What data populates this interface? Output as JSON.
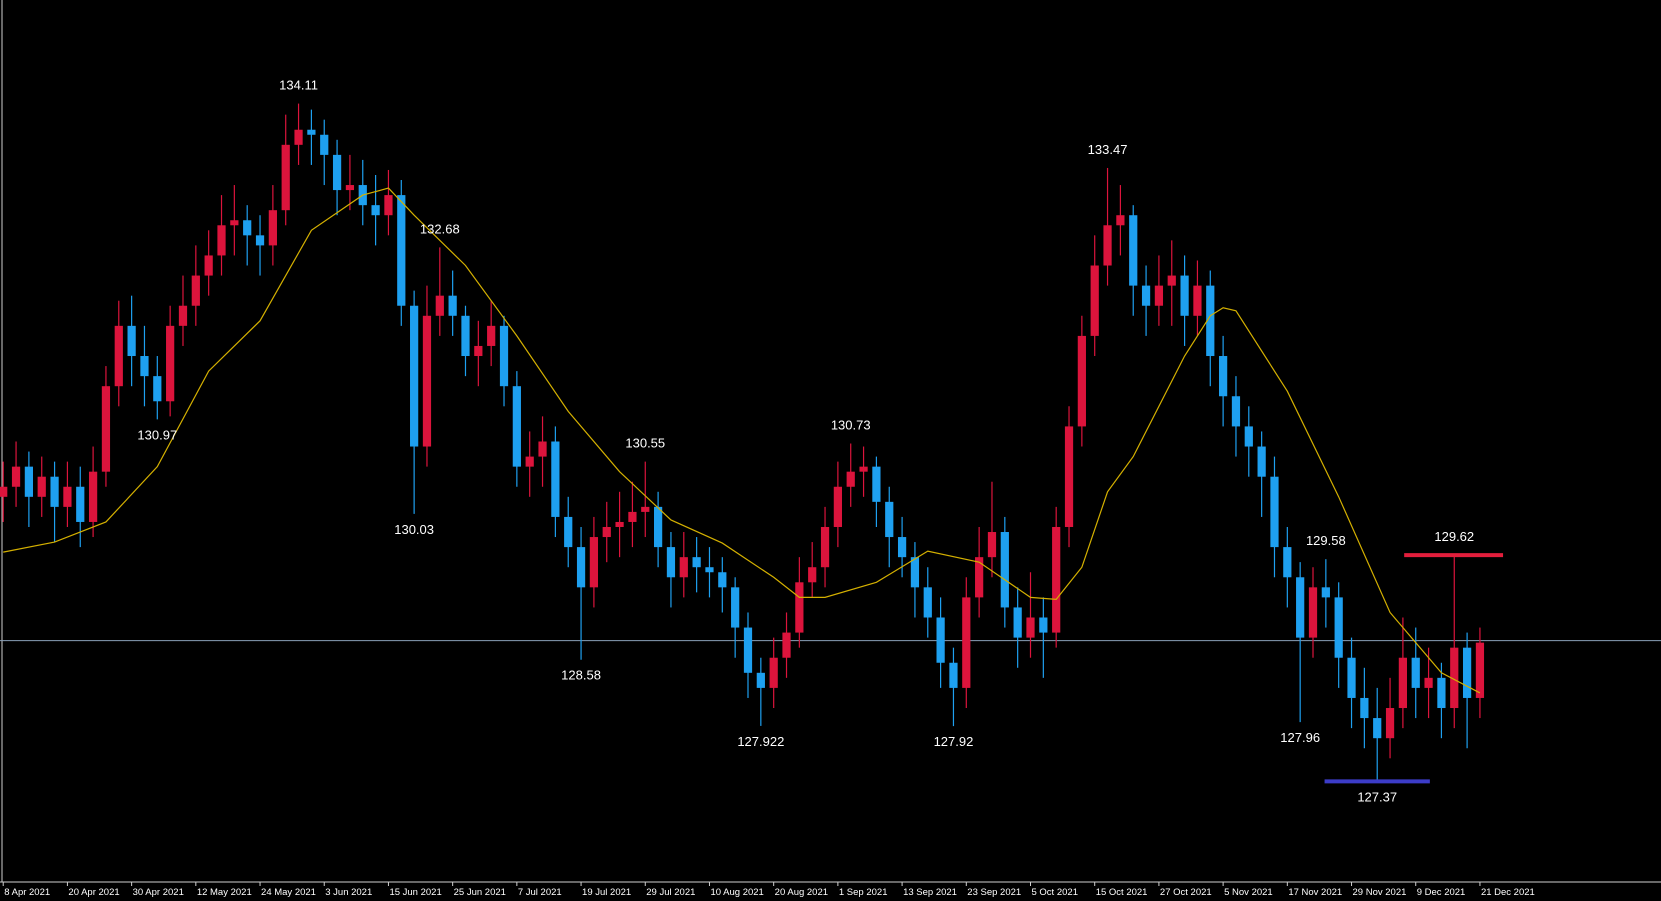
{
  "chart_data": {
    "type": "candlestick",
    "up_color": "#dc143c",
    "down_color": "#1ea0f0",
    "ma_color": "#d4b000",
    "price_line_color": "#8aa0b8",
    "xlim": [
      -0.25,
      129.1
    ],
    "ylim": [
      126.37,
      135.14
    ],
    "xticks": [
      {
        "value": 0,
        "label": "8 Apr 2021"
      },
      {
        "value": 5,
        "label": "20 Apr 2021"
      },
      {
        "value": 10,
        "label": "30 Apr 2021"
      },
      {
        "value": 15,
        "label": "12 May 2021"
      },
      {
        "value": 20,
        "label": "24 May 2021"
      },
      {
        "value": 25,
        "label": "3 Jun 2021"
      },
      {
        "value": 30,
        "label": "15 Jun 2021"
      },
      {
        "value": 35,
        "label": "25 Jun 2021"
      },
      {
        "value": 40,
        "label": "7 Jul 2021"
      },
      {
        "value": 45,
        "label": "19 Jul 2021"
      },
      {
        "value": 50,
        "label": "29 Jul 2021"
      },
      {
        "value": 55,
        "label": "10 Aug 2021"
      },
      {
        "value": 60,
        "label": "20 Aug 2021"
      },
      {
        "value": 65,
        "label": "1 Sep 2021"
      },
      {
        "value": 70,
        "label": "13 Sep 2021"
      },
      {
        "value": 75,
        "label": "23 Sep 2021"
      },
      {
        "value": 80,
        "label": "5 Oct 2021"
      },
      {
        "value": 85,
        "label": "15 Oct 2021"
      },
      {
        "value": 90,
        "label": "27 Oct 2021"
      },
      {
        "value": 95,
        "label": "5 Nov 2021"
      },
      {
        "value": 100,
        "label": "17 Nov 2021"
      },
      {
        "value": 105,
        "label": "29 Nov 2021"
      },
      {
        "value": 110,
        "label": "9 Dec 2021"
      },
      {
        "value": 115,
        "label": "21 Dec 2021"
      }
    ],
    "ohlc": [
      [
        130.2,
        130.55,
        129.95,
        130.3
      ],
      [
        130.3,
        130.75,
        130.1,
        130.5
      ],
      [
        130.5,
        130.65,
        129.9,
        130.2
      ],
      [
        130.2,
        130.6,
        130.0,
        130.4
      ],
      [
        130.4,
        130.55,
        129.75,
        130.1
      ],
      [
        130.1,
        130.55,
        129.9,
        130.3
      ],
      [
        130.3,
        130.5,
        129.7,
        129.95
      ],
      [
        129.95,
        130.7,
        129.8,
        130.45
      ],
      [
        130.45,
        131.5,
        130.3,
        131.3
      ],
      [
        131.3,
        132.15,
        131.1,
        131.9
      ],
      [
        131.9,
        132.2,
        131.3,
        131.6
      ],
      [
        131.6,
        131.9,
        131.1,
        131.4
      ],
      [
        131.4,
        131.6,
        130.97,
        131.15
      ],
      [
        131.15,
        132.1,
        131.0,
        131.9
      ],
      [
        131.9,
        132.4,
        131.7,
        132.1
      ],
      [
        132.1,
        132.7,
        131.9,
        132.4
      ],
      [
        132.4,
        132.85,
        132.2,
        132.6
      ],
      [
        132.6,
        133.2,
        132.4,
        132.9
      ],
      [
        132.9,
        133.3,
        132.6,
        132.95
      ],
      [
        132.95,
        133.1,
        132.5,
        132.8
      ],
      [
        132.8,
        133.0,
        132.4,
        132.7
      ],
      [
        132.7,
        133.3,
        132.5,
        133.05
      ],
      [
        133.05,
        134.0,
        132.9,
        133.7
      ],
      [
        133.7,
        134.11,
        133.5,
        133.85
      ],
      [
        133.85,
        134.05,
        133.5,
        133.8
      ],
      [
        133.8,
        133.95,
        133.3,
        133.6
      ],
      [
        133.6,
        133.75,
        133.0,
        133.25
      ],
      [
        133.25,
        133.6,
        133.05,
        133.3
      ],
      [
        133.3,
        133.55,
        132.9,
        133.1
      ],
      [
        133.1,
        133.4,
        132.7,
        133.0
      ],
      [
        133.0,
        133.45,
        132.8,
        133.2
      ],
      [
        133.2,
        133.35,
        131.9,
        132.1
      ],
      [
        132.1,
        132.25,
        130.03,
        130.7
      ],
      [
        130.7,
        132.3,
        130.5,
        132.0
      ],
      [
        132.0,
        132.68,
        131.8,
        132.2
      ],
      [
        132.2,
        132.45,
        131.8,
        132.0
      ],
      [
        132.0,
        132.1,
        131.4,
        131.6
      ],
      [
        131.6,
        131.95,
        131.3,
        131.7
      ],
      [
        131.7,
        132.15,
        131.5,
        131.9
      ],
      [
        131.9,
        132.0,
        131.1,
        131.3
      ],
      [
        131.3,
        131.45,
        130.3,
        130.5
      ],
      [
        130.5,
        130.85,
        130.2,
        130.6
      ],
      [
        130.6,
        131.0,
        130.3,
        130.75
      ],
      [
        130.75,
        130.9,
        129.8,
        130.0
      ],
      [
        130.0,
        130.2,
        129.5,
        129.7
      ],
      [
        129.7,
        129.9,
        128.58,
        129.3
      ],
      [
        129.3,
        130.0,
        129.1,
        129.8
      ],
      [
        129.8,
        130.15,
        129.55,
        129.9
      ],
      [
        129.9,
        130.25,
        129.6,
        129.95
      ],
      [
        129.95,
        130.35,
        129.7,
        130.05
      ],
      [
        130.05,
        130.55,
        129.8,
        130.1
      ],
      [
        130.1,
        130.25,
        129.5,
        129.7
      ],
      [
        129.7,
        129.85,
        129.1,
        129.4
      ],
      [
        129.4,
        129.85,
        129.2,
        129.6
      ],
      [
        129.6,
        129.8,
        129.25,
        129.5
      ],
      [
        129.5,
        129.7,
        129.2,
        129.45
      ],
      [
        129.45,
        129.6,
        129.05,
        129.3
      ],
      [
        129.3,
        129.4,
        128.6,
        128.9
      ],
      [
        128.9,
        129.05,
        128.2,
        128.45
      ],
      [
        128.45,
        128.6,
        127.922,
        128.3
      ],
      [
        128.3,
        128.8,
        128.1,
        128.6
      ],
      [
        128.6,
        129.05,
        128.4,
        128.85
      ],
      [
        128.85,
        129.6,
        128.7,
        129.35
      ],
      [
        129.35,
        129.75,
        129.2,
        129.5
      ],
      [
        129.5,
        130.1,
        129.3,
        129.9
      ],
      [
        129.9,
        130.55,
        129.7,
        130.3
      ],
      [
        130.3,
        130.73,
        130.1,
        130.45
      ],
      [
        130.45,
        130.7,
        130.2,
        130.5
      ],
      [
        130.5,
        130.6,
        129.9,
        130.15
      ],
      [
        130.15,
        130.3,
        129.5,
        129.8
      ],
      [
        129.8,
        130.0,
        129.4,
        129.6
      ],
      [
        129.6,
        129.75,
        129.0,
        129.3
      ],
      [
        129.3,
        129.5,
        128.8,
        129.0
      ],
      [
        129.0,
        129.2,
        128.3,
        128.55
      ],
      [
        128.55,
        128.7,
        127.92,
        128.3
      ],
      [
        128.3,
        129.4,
        128.1,
        129.2
      ],
      [
        129.2,
        129.9,
        129.0,
        129.6
      ],
      [
        129.6,
        130.35,
        129.4,
        129.85
      ],
      [
        129.85,
        130.0,
        128.9,
        129.1
      ],
      [
        129.1,
        129.3,
        128.5,
        128.8
      ],
      [
        128.8,
        129.45,
        128.6,
        129.0
      ],
      [
        129.0,
        129.2,
        128.4,
        128.85
      ],
      [
        128.85,
        130.1,
        128.7,
        129.9
      ],
      [
        129.9,
        131.1,
        129.7,
        130.9
      ],
      [
        130.9,
        132.0,
        130.7,
        131.8
      ],
      [
        131.8,
        132.8,
        131.6,
        132.5
      ],
      [
        132.5,
        133.47,
        132.3,
        132.9
      ],
      [
        132.9,
        133.3,
        132.6,
        133.0
      ],
      [
        133.0,
        133.1,
        132.0,
        132.3
      ],
      [
        132.3,
        132.5,
        131.8,
        132.1
      ],
      [
        132.1,
        132.6,
        131.9,
        132.3
      ],
      [
        132.3,
        132.75,
        131.9,
        132.4
      ],
      [
        132.4,
        132.6,
        131.7,
        132.0
      ],
      [
        132.0,
        132.55,
        131.8,
        132.3
      ],
      [
        132.3,
        132.45,
        131.3,
        131.6
      ],
      [
        131.6,
        131.8,
        130.9,
        131.2
      ],
      [
        131.2,
        131.4,
        130.6,
        130.9
      ],
      [
        130.9,
        131.1,
        130.4,
        130.7
      ],
      [
        130.7,
        130.85,
        130.0,
        130.4
      ],
      [
        130.4,
        130.6,
        129.4,
        129.7
      ],
      [
        129.7,
        129.9,
        129.1,
        129.4
      ],
      [
        129.4,
        129.55,
        127.96,
        128.8
      ],
      [
        128.8,
        129.5,
        128.6,
        129.3
      ],
      [
        129.3,
        129.58,
        128.9,
        129.2
      ],
      [
        129.2,
        129.35,
        128.3,
        128.6
      ],
      [
        128.6,
        128.8,
        127.9,
        128.2
      ],
      [
        128.2,
        128.5,
        127.7,
        128.0
      ],
      [
        128.0,
        128.3,
        127.37,
        127.8
      ],
      [
        127.8,
        128.4,
        127.6,
        128.1
      ],
      [
        128.1,
        129.0,
        127.9,
        128.6
      ],
      [
        128.6,
        128.9,
        128.0,
        128.3
      ],
      [
        128.3,
        128.7,
        128.0,
        128.4
      ],
      [
        128.4,
        128.55,
        127.8,
        128.1
      ],
      [
        128.1,
        129.62,
        127.9,
        128.7
      ],
      [
        128.7,
        128.85,
        127.7,
        128.2
      ],
      [
        128.2,
        128.9,
        128.0,
        128.75
      ]
    ],
    "ma": {
      "x": [
        0,
        4,
        8,
        12,
        16,
        20,
        24,
        28,
        30,
        32,
        36,
        40,
        44,
        48,
        52,
        56,
        60,
        62,
        64,
        68,
        72,
        76,
        80,
        82,
        84,
        86,
        88,
        92,
        94,
        95,
        96,
        100,
        104,
        108,
        112,
        115
      ],
      "values": [
        129.65,
        129.75,
        129.95,
        130.5,
        131.45,
        131.95,
        132.85,
        133.2,
        133.27,
        133.0,
        132.5,
        131.8,
        131.05,
        130.45,
        129.97,
        129.74,
        129.4,
        129.2,
        129.2,
        129.35,
        129.66,
        129.55,
        129.2,
        129.18,
        129.5,
        130.25,
        130.6,
        131.6,
        132.0,
        132.08,
        132.05,
        131.25,
        130.2,
        129.05,
        128.45,
        128.25
      ]
    },
    "current_price": 128.77,
    "levels": [
      {
        "value": 129.62,
        "from": 109.1,
        "to": 116.8,
        "color": "#e31e3c"
      },
      {
        "value": 127.37,
        "from": 102.9,
        "to": 111.1,
        "color": "#3c3cc8"
      }
    ],
    "annotations": [
      {
        "value": 134.11,
        "index": 23
      },
      {
        "value": 130.97,
        "index": 12
      },
      {
        "value": 132.68,
        "index": 34
      },
      {
        "value": 130.03,
        "index": 32
      },
      {
        "value": 130.55,
        "index": 50
      },
      {
        "value": 128.58,
        "index": 45
      },
      {
        "value": 130.73,
        "index": 66
      },
      {
        "value": 127.922,
        "index": 59
      },
      {
        "value": 127.92,
        "index": 74
      },
      {
        "value": 133.47,
        "index": 86
      },
      {
        "value": 129.58,
        "index": 103
      },
      {
        "value": 127.96,
        "index": 101
      },
      {
        "value": 129.62,
        "index": 113
      },
      {
        "value": 127.37,
        "index": 107
      }
    ]
  }
}
